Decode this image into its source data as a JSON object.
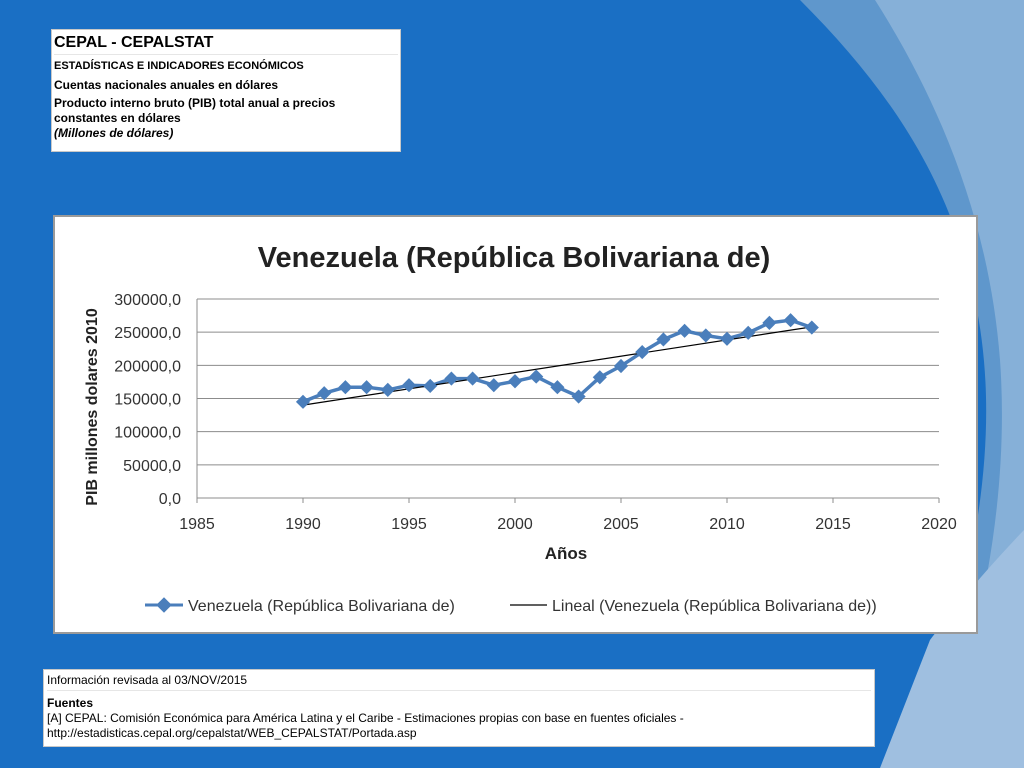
{
  "header": {
    "title": "CEPAL - CEPALSTAT",
    "line1": "ESTADÍSTICAS E INDICADORES ECONÓMICOS",
    "line2": "Cuentas nacionales anuales en dólares",
    "line3a": "Producto interno bruto (PIB) total anual a precios",
    "line3b": "constantes en dólares",
    "units": "(Millones de dólares)"
  },
  "chart_data": {
    "type": "line",
    "title": "Venezuela (República Bolivariana de)",
    "xlabel": "Años",
    "ylabel": "PIB millones dolares 2010",
    "xlim": [
      1985,
      2020
    ],
    "ylim": [
      0,
      300000
    ],
    "x_ticks": [
      "1985",
      "1990",
      "1995",
      "2000",
      "2005",
      "2010",
      "2015",
      "2020"
    ],
    "y_ticks": [
      "0,0",
      "50000,0",
      "100000,0",
      "150000,0",
      "200000,0",
      "250000,0",
      "300000,0"
    ],
    "grid": true,
    "legend_position": "bottom",
    "series": [
      {
        "name": "Venezuela (República Bolivariana de)",
        "color": "#4a7ebb",
        "x": [
          1990,
          1991,
          1992,
          1993,
          1994,
          1995,
          1996,
          1997,
          1998,
          1999,
          2000,
          2001,
          2002,
          2003,
          2004,
          2005,
          2006,
          2007,
          2008,
          2009,
          2010,
          2011,
          2012,
          2013,
          2014
        ],
        "y": [
          145000,
          158000,
          167000,
          167000,
          163000,
          170000,
          169000,
          180000,
          180000,
          170000,
          176000,
          183000,
          167000,
          153000,
          182000,
          199000,
          220000,
          239000,
          252000,
          245000,
          240000,
          249000,
          264000,
          268000,
          257000
        ]
      }
    ],
    "trendline": {
      "name": "Lineal (Venezuela (República Bolivariana de))",
      "color": "#000000",
      "x": [
        1990,
        2014
      ],
      "y": [
        140000,
        258000
      ]
    }
  },
  "footer": {
    "revised": "Información revisada al 03/NOV/2015",
    "sources_label": "Fuentes",
    "source_line1": "[A] CEPAL: Comisión Económica para América Latina y el Caribe - Estimaciones propias con base en fuentes oficiales -",
    "source_line2": "http://estadisticas.cepal.org/cepalstat/WEB_CEPALSTAT/Portada.asp"
  }
}
